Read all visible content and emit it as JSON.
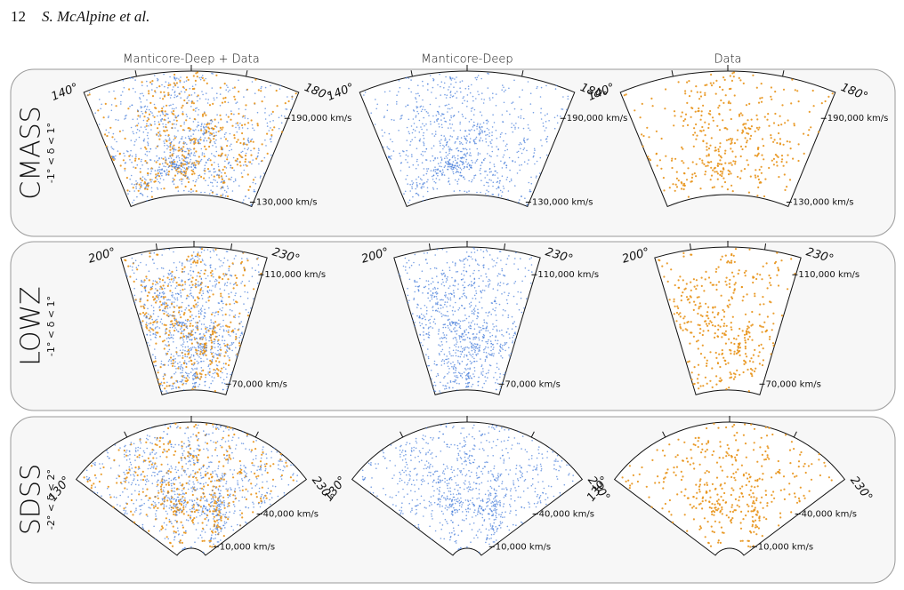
{
  "header": {
    "page": "12",
    "authors": "S. McAlpine et al."
  },
  "columns": [
    "Manticore-Deep + Data",
    "Manticore-Deep",
    "Data"
  ],
  "rows": [
    {
      "survey": "CMASS",
      "dec_range": "-1° < δ < 1°",
      "angle_labels": [
        "140°",
        "180°"
      ],
      "distance_labels": [
        "190,000 km/s",
        "130,000 km/s"
      ]
    },
    {
      "survey": "LOWZ",
      "dec_range": "-1° < δ < 1°",
      "angle_labels": [
        "200°",
        "230°"
      ],
      "distance_labels": [
        "110,000 km/s",
        "70,000 km/s"
      ]
    },
    {
      "survey": "SDSS",
      "dec_range": "-2° < δ < 2°",
      "angle_labels": [
        "130°",
        "230°"
      ],
      "distance_labels": [
        "40,000 km/s",
        "10,000 km/s"
      ]
    }
  ]
}
